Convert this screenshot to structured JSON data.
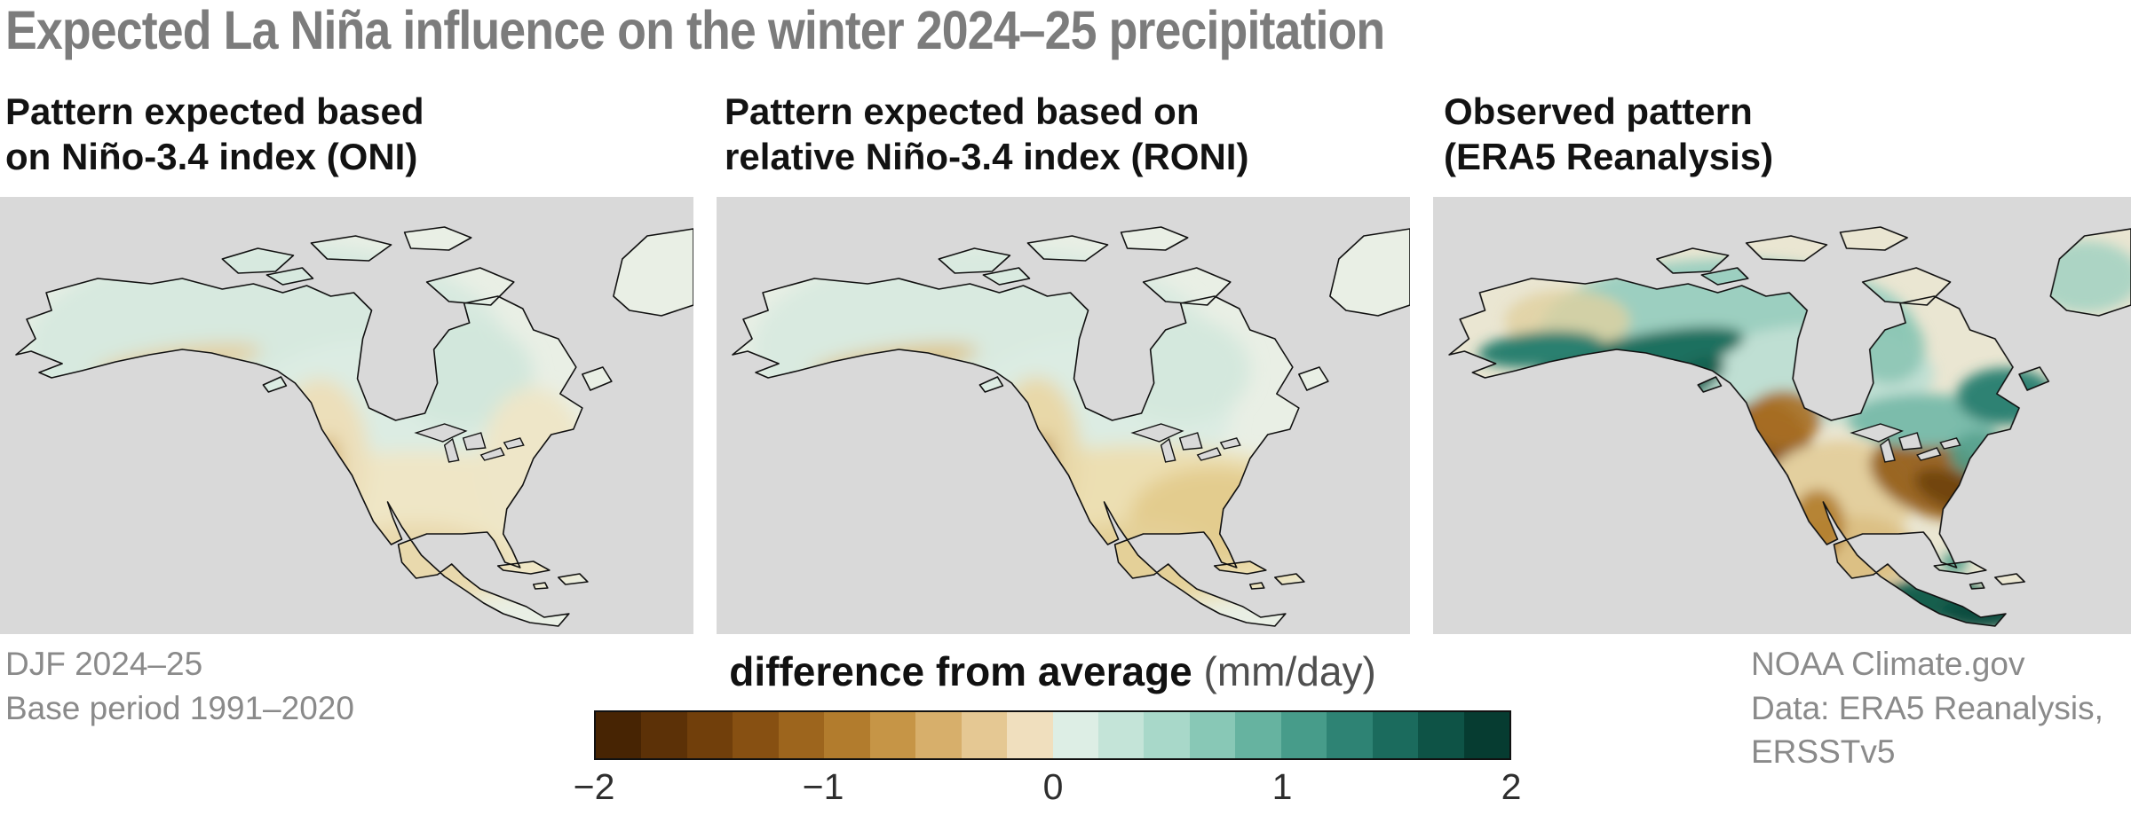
{
  "title": "Expected La Niña influence on the winter 2024–25 precipitation",
  "panels": [
    {
      "title_line1": "Pattern expected based",
      "title_line2": "on Niño-3.4 index (ONI)"
    },
    {
      "title_line1": "Pattern expected based on",
      "title_line2": "relative Niño-3.4 index (RONI)"
    },
    {
      "title_line1": "Observed pattern",
      "title_line2": "(ERA5 Reanalysis)"
    }
  ],
  "footer": {
    "left_line1": "DJF 2024–25",
    "left_line2": "Base period 1991–2020",
    "right_line1": "NOAA Climate.gov",
    "right_line2": "Data: ERA5 Reanalysis,",
    "right_line3": "ERSSTv5"
  },
  "colorbar": {
    "title_bold": "difference from average",
    "title_units": "(mm/day)",
    "ticks": [
      "−2",
      "−1",
      "0",
      "1",
      "2"
    ],
    "colors": [
      "#472403",
      "#5c3107",
      "#713f0b",
      "#875012",
      "#9d651d",
      "#b27c2d",
      "#c69546",
      "#d7af6b",
      "#e5c893",
      "#f0dfbe",
      "#ddeee5",
      "#c4e4d8",
      "#a8d8c9",
      "#88c8b6",
      "#66b3a0",
      "#479c8a",
      "#2e8374",
      "#1b6b5d",
      "#0e5346",
      "#063c31"
    ]
  },
  "palette": {
    "title_gray": "#7c7c7c",
    "footer_gray": "#8a8a8a",
    "ocean_gray": "#d9d9d9",
    "coastline": "#111111",
    "land_pale": "#e9efe5",
    "land_pale_warm": "#eae6d2",
    "pale_teal": "#d9eae0",
    "pale_tan": "#efe6c6",
    "teal_strong": "#1c6f5e",
    "teal_dark": "#0b4e3f",
    "brown_strong": "#8a5415",
    "brown_dark": "#5e3507"
  },
  "chart_data": {
    "type": "heatmap",
    "subtype": "geographic map panels (North America)",
    "title": "Expected La Niña influence on the winter 2024–25 precipitation",
    "variable": "precipitation difference from average",
    "units": "mm/day",
    "season": "DJF 2024–25",
    "base_period": "1991–2020",
    "region": "North America",
    "color_scale": {
      "min": -2,
      "max": 2,
      "ticks": [
        -2,
        -1,
        0,
        1,
        2
      ],
      "steps": 20,
      "scheme": "diverging: dark brown (dry, -2) through white (0) to dark teal (wet, +2)"
    },
    "panels": [
      {
        "label": "Pattern expected based on Niño-3.4 index (ONI)",
        "description": "Weak anomalies: slightly wet (about 0 to +0.3 mm/day) over Alaska, western and central Canada, the Pacific Northwest and the Ohio Valley; slightly dry (about 0 to -0.3 mm/day) across the southern U.S., Gulf Coast, East Coast fringe and Mexico."
      },
      {
        "label": "Pattern expected based on relative Niño-3.4 index (RONI)",
        "description": "Similar but somewhat stronger pattern: wet anomalies over the northern tier and Canada; dry anomalies (about -0.3 to -0.6 mm/day) across the southern U.S., Southeast and Mexico, with a dry strip along the California coast."
      },
      {
        "label": "Observed pattern (ERA5 Reanalysis)",
        "description": "Much stronger anomalies: very wet (+1 to +2 mm/day) along the southern Alaska and British Columbia coasts, across eastern Canada/St. Lawrence, and over southern Mexico and Central America; very dry (-1 to -2 mm/day) over California, the Great Basin and Southwest, and over the Ohio Valley/Appalachians; dry over much of Mexico and the central plains."
      }
    ],
    "source": "NOAA Climate.gov; Data: ERA5 Reanalysis, ERSSTv5"
  }
}
